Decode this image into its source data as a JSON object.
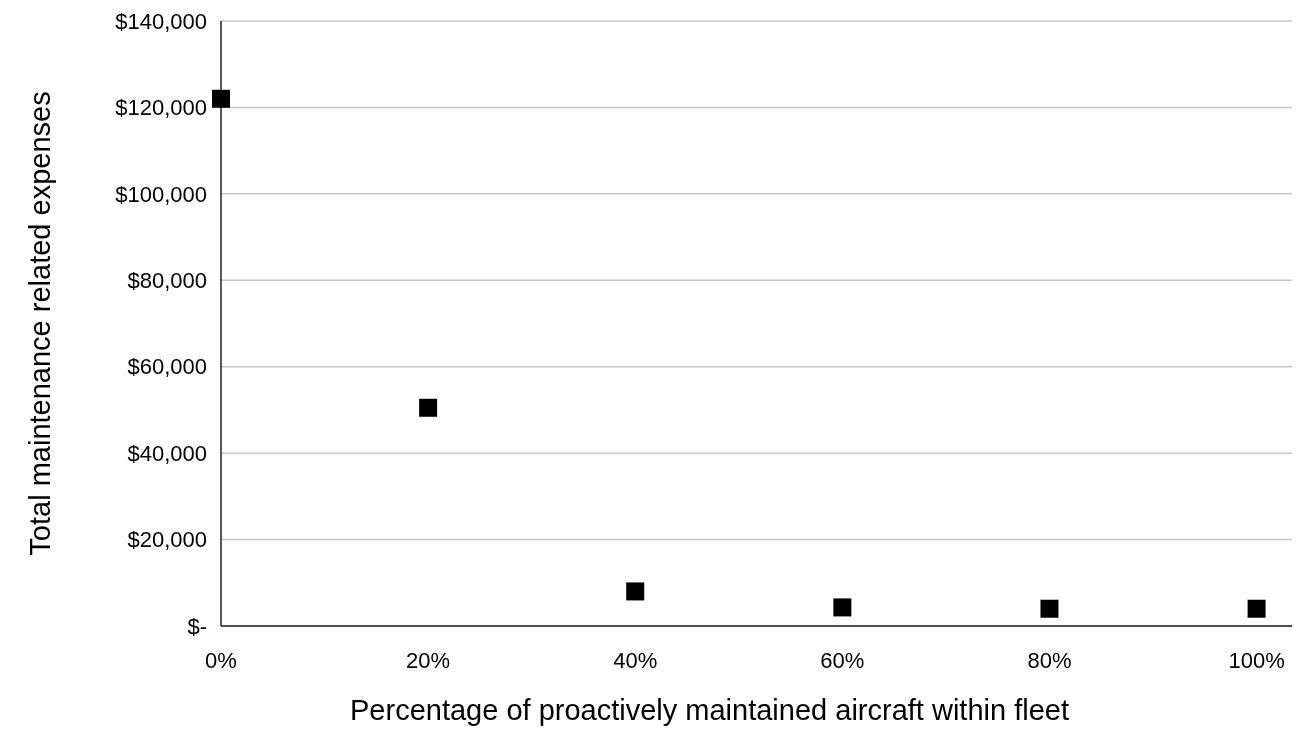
{
  "chart_data": {
    "type": "scatter",
    "xlabel": "Percentage of proactively maintained aircraft within fleet",
    "ylabel": "Total maintenance related expenses",
    "x": [
      0,
      20,
      40,
      60,
      80,
      100
    ],
    "values": [
      122000,
      50500,
      8000,
      4300,
      4000,
      4000
    ],
    "color": "#000000",
    "marker": "square",
    "xlim": [
      0,
      104
    ],
    "xticks": [
      {
        "value": 0,
        "label": "0%"
      },
      {
        "value": 20,
        "label": "20%"
      },
      {
        "value": 40,
        "label": "40%"
      },
      {
        "value": 60,
        "label": "60%"
      },
      {
        "value": 80,
        "label": "80%"
      },
      {
        "value": 100,
        "label": "100%"
      }
    ],
    "ylim": [
      0,
      140000
    ],
    "yticks": [
      {
        "value": 0,
        "label": "$-"
      },
      {
        "value": 20000,
        "label": "$20,000"
      },
      {
        "value": 40000,
        "label": "$40,000"
      },
      {
        "value": 60000,
        "label": "$60,000"
      },
      {
        "value": 80000,
        "label": "$80,000"
      },
      {
        "value": 100000,
        "label": "$100,000"
      },
      {
        "value": 120000,
        "label": "$120,000"
      },
      {
        "value": 140000,
        "label": "$140,000"
      }
    ],
    "grid": "y"
  }
}
